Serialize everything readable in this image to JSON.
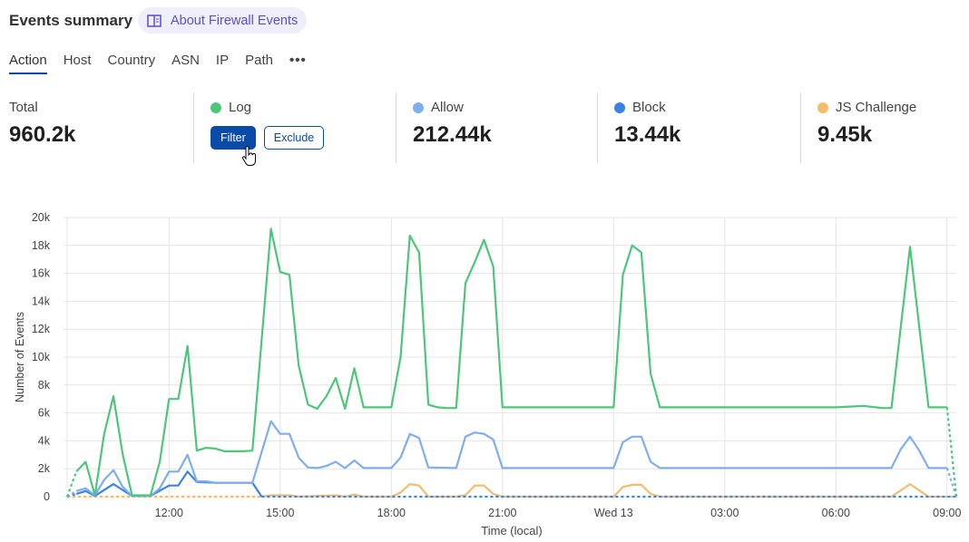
{
  "header": {
    "title": "Events summary",
    "about_label": "About Firewall Events",
    "about_icon": "book-icon"
  },
  "tabs": [
    {
      "label": "Action",
      "active": true
    },
    {
      "label": "Host"
    },
    {
      "label": "Country"
    },
    {
      "label": "ASN"
    },
    {
      "label": "IP"
    },
    {
      "label": "Path"
    }
  ],
  "more_icon": "ellipsis-icon",
  "stats": {
    "total": {
      "label": "Total",
      "value": "960.2k"
    },
    "log": {
      "label": "Log",
      "color": "#4cc77a",
      "filter_label": "Filter",
      "exclude_label": "Exclude"
    },
    "allow": {
      "label": "Allow",
      "value": "212.44k",
      "color": "#7eaef0"
    },
    "block": {
      "label": "Block",
      "value": "13.44k",
      "color": "#3b82e6"
    },
    "js_challenge": {
      "label": "JS Challenge",
      "value": "9.45k",
      "color": "#f3bc6a"
    }
  },
  "chart_data": {
    "type": "line",
    "xlabel": "Time (local)",
    "ylabel": "Number of Events",
    "ylim": [
      0,
      20000
    ],
    "x_range": [
      "Tue 09:15",
      "Wed 09:15"
    ],
    "x_ticks": [
      {
        "t": "Tue 12:00",
        "label": "12:00"
      },
      {
        "t": "Tue 15:00",
        "label": "15:00"
      },
      {
        "t": "Tue 18:00",
        "label": "18:00"
      },
      {
        "t": "Tue 21:00",
        "label": "21:00"
      },
      {
        "t": "Wed 00:00",
        "label": "Wed 13"
      },
      {
        "t": "Wed 03:00",
        "label": "03:00"
      },
      {
        "t": "Wed 06:00",
        "label": "06:00"
      },
      {
        "t": "Wed 09:00",
        "label": "09:00"
      }
    ],
    "y_ticks": [
      {
        "v": 0,
        "label": "0"
      },
      {
        "v": 2000,
        "label": "2k"
      },
      {
        "v": 4000,
        "label": "4k"
      },
      {
        "v": 6000,
        "label": "6k"
      },
      {
        "v": 8000,
        "label": "8k"
      },
      {
        "v": 10000,
        "label": "10k"
      },
      {
        "v": 12000,
        "label": "12k"
      },
      {
        "v": 14000,
        "label": "14k"
      },
      {
        "v": 16000,
        "label": "16k"
      },
      {
        "v": 18000,
        "label": "18k"
      },
      {
        "v": 20000,
        "label": "20k"
      }
    ],
    "grid": true,
    "series": [
      {
        "name": "Log",
        "color": "#4cc77a",
        "points": [
          [
            "Tue 09:15",
            0
          ],
          [
            "Tue 09:30",
            1800
          ],
          [
            "Tue 09:45",
            2500
          ],
          [
            "Tue 10:00",
            100
          ],
          [
            "Tue 10:15",
            4500
          ],
          [
            "Tue 10:30",
            7200
          ],
          [
            "Tue 10:45",
            3000
          ],
          [
            "Tue 11:00",
            100
          ],
          [
            "Tue 11:30",
            100
          ],
          [
            "Tue 11:45",
            2500
          ],
          [
            "Tue 12:00",
            7000
          ],
          [
            "Tue 12:15",
            7000
          ],
          [
            "Tue 12:30",
            10800
          ],
          [
            "Tue 12:45",
            3300
          ],
          [
            "Tue 13:00",
            3500
          ],
          [
            "Tue 13:15",
            3450
          ],
          [
            "Tue 13:30",
            3250
          ],
          [
            "Tue 14:00",
            3250
          ],
          [
            "Tue 14:15",
            3300
          ],
          [
            "Tue 14:45",
            19200
          ],
          [
            "Tue 15:00",
            16100
          ],
          [
            "Tue 15:15",
            15900
          ],
          [
            "Tue 15:30",
            9400
          ],
          [
            "Tue 15:45",
            6600
          ],
          [
            "Tue 16:00",
            6300
          ],
          [
            "Tue 16:15",
            7200
          ],
          [
            "Tue 16:30",
            8500
          ],
          [
            "Tue 16:45",
            6300
          ],
          [
            "Tue 17:00",
            9200
          ],
          [
            "Tue 17:15",
            6400
          ],
          [
            "Tue 18:00",
            6400
          ],
          [
            "Tue 18:15",
            10000
          ],
          [
            "Tue 18:30",
            18700
          ],
          [
            "Tue 18:45",
            17500
          ],
          [
            "Tue 19:00",
            6600
          ],
          [
            "Tue 19:15",
            6400
          ],
          [
            "Tue 19:30",
            6350
          ],
          [
            "Tue 19:45",
            6350
          ],
          [
            "Tue 20:00",
            15300
          ],
          [
            "Tue 20:15",
            16800
          ],
          [
            "Tue 20:30",
            18400
          ],
          [
            "Tue 20:45",
            16500
          ],
          [
            "Tue 21:00",
            6400
          ],
          [
            "Wed 00:00",
            6400
          ],
          [
            "Wed 00:15",
            15900
          ],
          [
            "Wed 00:30",
            18000
          ],
          [
            "Wed 00:45",
            17500
          ],
          [
            "Wed 01:00",
            8800
          ],
          [
            "Wed 01:15",
            6400
          ],
          [
            "Wed 06:00",
            6400
          ],
          [
            "Wed 06:45",
            6500
          ],
          [
            "Wed 07:15",
            6350
          ],
          [
            "Wed 07:30",
            6350
          ],
          [
            "Wed 08:00",
            17900
          ],
          [
            "Wed 08:30",
            6400
          ],
          [
            "Wed 09:00",
            6400
          ],
          [
            "Wed 09:15",
            0
          ]
        ]
      },
      {
        "name": "Allow",
        "color": "#7eaef0",
        "points": [
          [
            "Tue 09:15",
            0
          ],
          [
            "Tue 09:30",
            400
          ],
          [
            "Tue 09:45",
            600
          ],
          [
            "Tue 10:00",
            100
          ],
          [
            "Tue 10:15",
            1200
          ],
          [
            "Tue 10:30",
            1900
          ],
          [
            "Tue 10:45",
            700
          ],
          [
            "Tue 11:00",
            50
          ],
          [
            "Tue 11:30",
            50
          ],
          [
            "Tue 11:45",
            600
          ],
          [
            "Tue 12:00",
            1800
          ],
          [
            "Tue 12:15",
            1800
          ],
          [
            "Tue 12:30",
            3000
          ],
          [
            "Tue 12:45",
            1100
          ],
          [
            "Tue 13:00",
            1100
          ],
          [
            "Tue 13:15",
            1000
          ],
          [
            "Tue 14:15",
            1000
          ],
          [
            "Tue 14:45",
            5400
          ],
          [
            "Tue 15:00",
            4500
          ],
          [
            "Tue 15:15",
            4500
          ],
          [
            "Tue 15:30",
            2800
          ],
          [
            "Tue 15:45",
            2100
          ],
          [
            "Tue 16:00",
            2050
          ],
          [
            "Tue 16:15",
            2200
          ],
          [
            "Tue 16:30",
            2500
          ],
          [
            "Tue 16:45",
            2050
          ],
          [
            "Tue 17:00",
            2600
          ],
          [
            "Tue 17:15",
            2050
          ],
          [
            "Tue 18:00",
            2050
          ],
          [
            "Tue 18:15",
            2800
          ],
          [
            "Tue 18:30",
            4500
          ],
          [
            "Tue 18:45",
            4200
          ],
          [
            "Tue 19:00",
            2100
          ],
          [
            "Tue 19:45",
            2050
          ],
          [
            "Tue 20:00",
            4300
          ],
          [
            "Tue 20:15",
            4600
          ],
          [
            "Tue 20:30",
            4500
          ],
          [
            "Tue 20:45",
            4100
          ],
          [
            "Tue 21:00",
            2050
          ],
          [
            "Wed 00:00",
            2050
          ],
          [
            "Wed 00:15",
            3900
          ],
          [
            "Wed 00:30",
            4300
          ],
          [
            "Wed 00:45",
            4300
          ],
          [
            "Wed 01:00",
            2500
          ],
          [
            "Wed 01:15",
            2050
          ],
          [
            "Wed 07:30",
            2050
          ],
          [
            "Wed 07:45",
            3400
          ],
          [
            "Wed 08:00",
            4300
          ],
          [
            "Wed 08:15",
            3300
          ],
          [
            "Wed 08:30",
            2050
          ],
          [
            "Wed 09:00",
            2050
          ],
          [
            "Wed 09:15",
            0
          ]
        ]
      },
      {
        "name": "Block",
        "color": "#3b82e6",
        "points": [
          [
            "Tue 09:15",
            0
          ],
          [
            "Tue 09:30",
            200
          ],
          [
            "Tue 09:45",
            400
          ],
          [
            "Tue 10:00",
            50
          ],
          [
            "Tue 10:30",
            900
          ],
          [
            "Tue 11:00",
            50
          ],
          [
            "Tue 11:30",
            50
          ],
          [
            "Tue 12:00",
            800
          ],
          [
            "Tue 12:15",
            800
          ],
          [
            "Tue 12:30",
            1800
          ],
          [
            "Tue 12:45",
            1050
          ],
          [
            "Tue 13:15",
            1000
          ],
          [
            "Tue 14:15",
            1000
          ],
          [
            "Tue 14:30",
            0
          ],
          [
            "Wed 09:15",
            0
          ]
        ]
      },
      {
        "name": "JS Challenge",
        "color": "#f3bc6a",
        "points": [
          [
            "Tue 09:15",
            0
          ],
          [
            "Tue 14:30",
            0
          ],
          [
            "Tue 14:45",
            100
          ],
          [
            "Tue 15:15",
            100
          ],
          [
            "Tue 15:30",
            0
          ],
          [
            "Tue 16:30",
            100
          ],
          [
            "Tue 16:45",
            0
          ],
          [
            "Tue 17:00",
            150
          ],
          [
            "Tue 17:15",
            0
          ],
          [
            "Tue 18:00",
            0
          ],
          [
            "Tue 18:15",
            300
          ],
          [
            "Tue 18:30",
            900
          ],
          [
            "Tue 18:45",
            800
          ],
          [
            "Tue 19:00",
            0
          ],
          [
            "Tue 19:45",
            0
          ],
          [
            "Tue 20:00",
            100
          ],
          [
            "Tue 20:15",
            800
          ],
          [
            "Tue 20:30",
            800
          ],
          [
            "Tue 20:45",
            200
          ],
          [
            "Tue 21:00",
            0
          ],
          [
            "Wed 00:00",
            0
          ],
          [
            "Wed 00:15",
            700
          ],
          [
            "Wed 00:30",
            850
          ],
          [
            "Wed 00:45",
            850
          ],
          [
            "Wed 01:00",
            200
          ],
          [
            "Wed 01:15",
            0
          ],
          [
            "Wed 07:30",
            0
          ],
          [
            "Wed 08:00",
            900
          ],
          [
            "Wed 08:30",
            0
          ],
          [
            "Wed 09:15",
            0
          ]
        ]
      }
    ]
  }
}
